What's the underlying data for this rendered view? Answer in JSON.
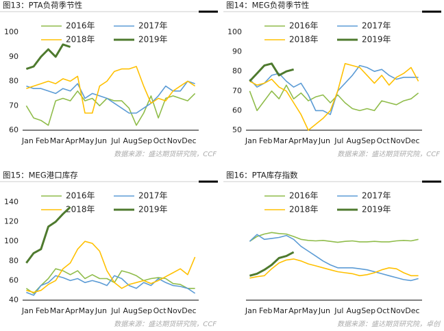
{
  "chart_data": [
    {
      "type": "line",
      "title": "图13：PTA负荷季节性",
      "source": "数据来源：盛达期货研究院，CCF",
      "categories": [
        "Jan",
        null,
        "Feb",
        null,
        "Mar",
        null,
        "Apr",
        null,
        "May",
        null,
        "Jun",
        null,
        "Jul",
        null,
        "Aug",
        null,
        "Sep",
        null,
        "Oct",
        null,
        "Nov",
        null,
        "Dec",
        null
      ],
      "ylim": [
        60,
        100
      ],
      "yticks": [
        60,
        70,
        80,
        90,
        100
      ],
      "series": [
        {
          "name": "2016年",
          "color": "#8fbc4a",
          "width": 1.6,
          "values": [
            70,
            65,
            64,
            62,
            72,
            73,
            72,
            76,
            72,
            73,
            70,
            73,
            72,
            72,
            69,
            62,
            67,
            74,
            65,
            73,
            74,
            73,
            72,
            75
          ]
        },
        {
          "name": "2017年",
          "color": "#5b9bd5",
          "width": 1.6,
          "values": [
            78,
            77,
            77,
            76,
            75,
            77,
            76,
            79,
            73,
            75,
            74,
            73,
            71,
            69,
            67,
            67,
            69,
            71,
            74,
            78,
            76,
            76,
            80,
            79
          ]
        },
        {
          "name": "2018年",
          "color": "#ffc000",
          "width": 1.6,
          "values": [
            77,
            78,
            79,
            80,
            79,
            81,
            80,
            82,
            67,
            67,
            78,
            80,
            84,
            85,
            85,
            86,
            78,
            71,
            73,
            72,
            76,
            78,
            80,
            78
          ]
        },
        {
          "name": "2019年",
          "color": "#4e7a2e",
          "width": 3,
          "values": [
            85,
            86,
            90,
            93,
            90,
            95,
            94,
            null,
            null,
            null,
            null,
            null,
            null,
            null,
            null,
            null,
            null,
            null,
            null,
            null,
            null,
            null,
            null,
            null
          ]
        }
      ]
    },
    {
      "type": "line",
      "title": "图14：MEG负荷季节性",
      "source": "数据来源：盛达期货研究院，CCF",
      "categories": [
        "Jan",
        null,
        "Feb",
        null,
        "Mar",
        null,
        "Apr",
        null,
        "May",
        null,
        "Jun",
        null,
        "Jul",
        null,
        "Aug",
        null,
        "Sep",
        null,
        "Oct",
        null,
        "Nov",
        null,
        "Dec",
        null
      ],
      "ylim": [
        50,
        100
      ],
      "yticks": [
        50,
        60,
        70,
        80,
        90,
        100
      ],
      "series": [
        {
          "name": "2016年",
          "color": "#8fbc4a",
          "width": 1.6,
          "values": [
            70,
            60,
            65,
            70,
            66,
            73,
            66,
            69,
            65,
            67,
            68,
            64,
            68,
            64,
            61,
            60,
            61,
            60,
            65,
            64,
            63,
            65,
            66,
            69
          ]
        },
        {
          "name": "2017年",
          "color": "#5b9bd5",
          "width": 1.6,
          "values": [
            76,
            72,
            74,
            78,
            79,
            75,
            72,
            74,
            68,
            60,
            60,
            58,
            70,
            74,
            78,
            83,
            82,
            80,
            81,
            78,
            76,
            77,
            77,
            77
          ]
        },
        {
          "name": "2018年",
          "color": "#ffc000",
          "width": 1.6,
          "values": [
            75,
            73,
            74,
            76,
            72,
            70,
            64,
            58,
            50,
            53,
            56,
            60,
            70,
            84,
            83,
            82,
            78,
            74,
            78,
            73,
            77,
            79,
            82,
            75
          ]
        },
        {
          "name": "2019年",
          "color": "#4e7a2e",
          "width": 3,
          "values": [
            75,
            79,
            83,
            84,
            78,
            80,
            81,
            null,
            null,
            null,
            null,
            null,
            null,
            null,
            null,
            null,
            null,
            null,
            null,
            null,
            null,
            null,
            null,
            null
          ]
        }
      ]
    },
    {
      "type": "line",
      "title": "图15：MEG港口库存",
      "source": "数据来源：盛达期货研究院，CCF",
      "categories": [
        "Jan",
        null,
        "Feb",
        null,
        "Mar",
        null,
        "Apr",
        null,
        "May",
        null,
        "Jun",
        null,
        "Jul",
        null,
        "Aug",
        null,
        "Sep",
        null,
        "Oct",
        null,
        "Nov",
        null,
        "Dec",
        null
      ],
      "ylim": [
        40,
        140
      ],
      "yticks": [
        40,
        60,
        80,
        100,
        120,
        140
      ],
      "series": [
        {
          "name": "2016年",
          "color": "#8fbc4a",
          "width": 1.6,
          "values": [
            52,
            47,
            55,
            62,
            72,
            70,
            66,
            70,
            62,
            66,
            62,
            62,
            58,
            70,
            68,
            65,
            60,
            62,
            63,
            62,
            57,
            56,
            52,
            52
          ]
        },
        {
          "name": "2017年",
          "color": "#5b9bd5",
          "width": 1.6,
          "values": [
            48,
            45,
            55,
            58,
            65,
            63,
            60,
            62,
            58,
            60,
            58,
            55,
            65,
            62,
            55,
            52,
            58,
            55,
            62,
            58,
            55,
            54,
            52,
            47
          ]
        },
        {
          "name": "2018年",
          "color": "#ffc000",
          "width": 1.6,
          "values": [
            50,
            48,
            50,
            56,
            60,
            72,
            78,
            92,
            100,
            98,
            90,
            70,
            58,
            52,
            56,
            58,
            60,
            57,
            60,
            64,
            68,
            72,
            66,
            84
          ]
        },
        {
          "name": "2019年",
          "color": "#4e7a2e",
          "width": 3,
          "values": [
            78,
            88,
            92,
            115,
            120,
            128,
            135,
            null,
            null,
            null,
            null,
            null,
            null,
            null,
            null,
            null,
            null,
            null,
            null,
            null,
            null,
            null,
            null,
            null
          ]
        }
      ]
    },
    {
      "type": "line",
      "title": "图16：PTA库存指数",
      "source": "数据来源：盛达期货研究院，卓创",
      "categories": [
        "Jan",
        null,
        "Feb",
        null,
        "Mar",
        null,
        "Apr",
        null,
        "May",
        null,
        "Jun",
        null,
        "Jul",
        null,
        "Aug",
        null,
        "Sep",
        null,
        "Oct",
        null,
        "Nov",
        null,
        "Dec",
        null
      ],
      "ylim": [
        0,
        200
      ],
      "series": [
        {
          "name": "2016年",
          "color": "#8fbc4a",
          "width": 1.6,
          "values": [
            120,
            130,
            135,
            138,
            136,
            135,
            130,
            124,
            122,
            121,
            122,
            120,
            118,
            120,
            121,
            119,
            119,
            120,
            119,
            119,
            121,
            122,
            121,
            124
          ]
        },
        {
          "name": "2017年",
          "color": "#5b9bd5",
          "width": 1.6,
          "values": [
            120,
            134,
            124,
            126,
            128,
            132,
            124,
            110,
            100,
            90,
            80,
            72,
            66,
            66,
            66,
            64,
            62,
            58,
            54,
            50,
            46,
            42,
            40,
            44
          ]
        },
        {
          "name": "2018年",
          "color": "#ffc000",
          "width": 1.6,
          "values": [
            45,
            48,
            50,
            64,
            76,
            82,
            84,
            80,
            74,
            70,
            66,
            62,
            58,
            56,
            54,
            50,
            52,
            56,
            62,
            66,
            64,
            56,
            50,
            50
          ]
        },
        {
          "name": "2019年",
          "color": "#4e7a2e",
          "width": 3,
          "values": [
            50,
            54,
            62,
            72,
            86,
            90,
            98,
            null,
            null,
            null,
            null,
            null,
            null,
            null,
            null,
            null,
            null,
            null,
            null,
            null,
            null,
            null,
            null,
            null
          ]
        }
      ]
    }
  ]
}
